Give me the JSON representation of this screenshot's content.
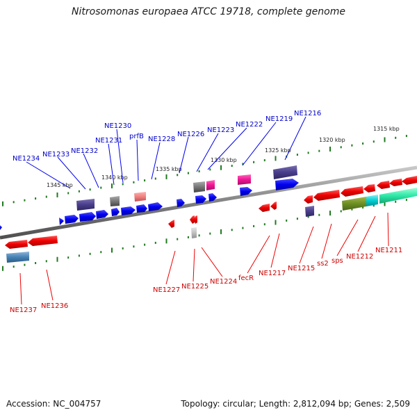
{
  "title": "Nitrosomonas europaea ATCC 19718, complete genome",
  "footer": {
    "accession": "Accession: NC_004757",
    "summary": "Topology: circular; Length: 2,812,094 bp; Genes: 2,509"
  },
  "scale_labels": [
    "1345 kbp",
    "1340 kbp",
    "1335 kbp",
    "1330 kbp",
    "1325 kbp",
    "1320 kbp",
    "1315 kbp"
  ],
  "top_labels": [
    "NE1234",
    "NE1233",
    "NE1232",
    "NE1231",
    "NE1230",
    "prfB",
    "NE1228",
    "NE1226",
    "NE1223",
    "NE1222",
    "NE1219",
    "NE1216"
  ],
  "bottom_labels": [
    "NE1237",
    "NE1236",
    "NE1227",
    "NE1225",
    "NE1224",
    "fecR",
    "NE1217",
    "NE1215",
    "ss2",
    "sps",
    "NE1212",
    "NE1211"
  ],
  "colors": {
    "forward_label": "#0000cc",
    "reverse_label": "#cc0000",
    "backbone": "#808080",
    "tick": "#1f7a1f"
  }
}
